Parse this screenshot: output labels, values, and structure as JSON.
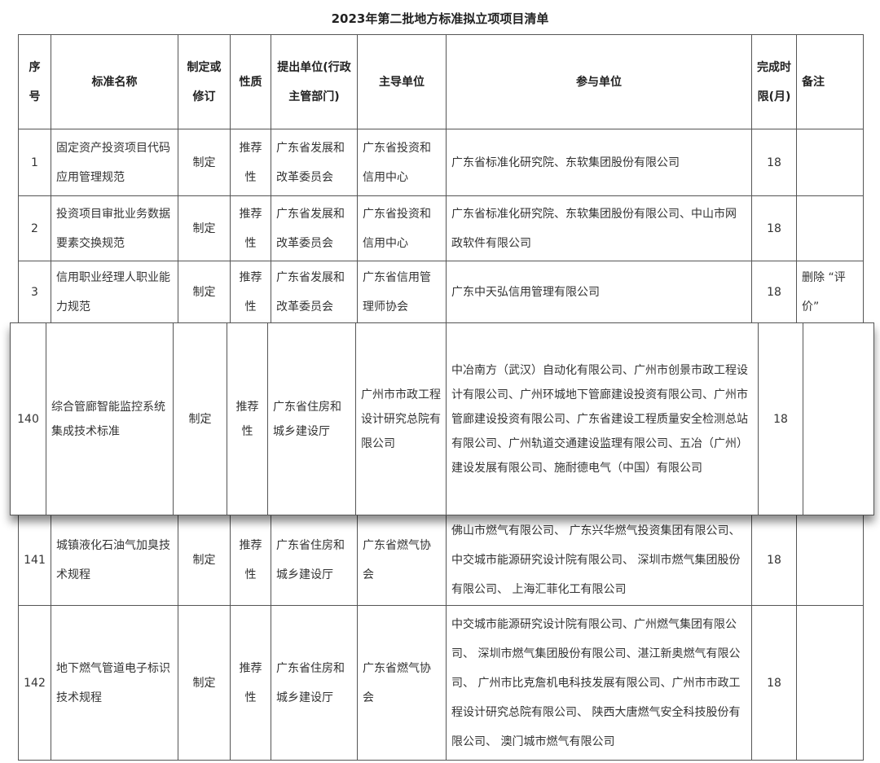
{
  "title": "2023年第二批地方标准拟立项项目清单",
  "headers": {
    "no": "序号",
    "name": "标准名称",
    "type": "制定或修订",
    "nature": "性质",
    "proposer": "提出单位(行政主管部门)",
    "lead": "主导单位",
    "participants": "参与单位",
    "deadline": "完成时限(月)",
    "remark": "备注"
  },
  "rows": [
    {
      "no": "1",
      "name": "固定资产投资项目代码应用管理规范",
      "type": "制定",
      "nature": "推荐性",
      "proposer": "广东省发展和改革委员会",
      "lead": "广东省投资和信用中心",
      "participants": "广东省标准化研究院、东软集团股份有限公司",
      "deadline": "18",
      "remark": ""
    },
    {
      "no": "2",
      "name": "投资项目审批业务数据要素交换规范",
      "type": "制定",
      "nature": "推荐性",
      "proposer": "广东省发展和改革委员会",
      "lead": "广东省投资和信用中心",
      "participants": "广东省标准化研究院、东软集团股份有限公司、中山市网政软件有限公司",
      "deadline": "18",
      "remark": ""
    },
    {
      "no": "3",
      "name": "信用职业经理人职业能力规范",
      "type": "制定",
      "nature": "推荐性",
      "proposer": "广东省发展和改革委员会",
      "lead": "广东省信用管理师协会",
      "participants": "广东中天弘信用管理有限公司",
      "deadline": "18",
      "remark": "删除 “评价”"
    },
    {
      "no": "141",
      "name": "城镇液化石油气加臭技术规程",
      "type": "制定",
      "nature": "推荐性",
      "proposer": "广东省住房和城乡建设厅",
      "lead": "广东省燃气协会",
      "participants": "佛山市燃气有限公司、 广东兴华燃气投资集团有限公司、中交城市能源研究设计院有限公司、 深圳市燃气集团股份有限公司、 上海汇菲化工有限公司",
      "deadline": "18",
      "remark": ""
    },
    {
      "no": "142",
      "name": "地下燃气管道电子标识技术规程",
      "type": "制定",
      "nature": "推荐性",
      "proposer": "广东省住房和城乡建设厅",
      "lead": "广东省燃气协会",
      "participants": "中交城市能源研究设计院有限公司、广州燃气集团有限公司、 深圳市燃气集团股份有限公司、湛江新奥燃气有限公司、 广州市比克詹机电科技发展有限公司、广州市市政工程设计研究总院有限公司、 陕西大唐燃气安全科技股份有限公司、 澳门城市燃气有限公司",
      "deadline": "18",
      "remark": ""
    }
  ],
  "highlighted_row": {
    "no": "140",
    "name": "综合管廊智能监控系统集成技术标准",
    "type": "制定",
    "nature": "推荐性",
    "proposer": "广东省住房和城乡建设厅",
    "lead": "广州市市政工程设计研究总院有限公司",
    "participants": "中冶南方（武汉）自动化有限公司、广州市创景市政工程设计有限公司、广州环城地下管廊建设投资有限公司、广州市管廊建设投资有限公司、广东省建设工程质量安全检测总站有限公司、广州轨道交通建设监理有限公司、五冶（广州）建设发展有限公司、施耐德电气（中国）有限公司",
    "deadline": "18",
    "remark": ""
  }
}
